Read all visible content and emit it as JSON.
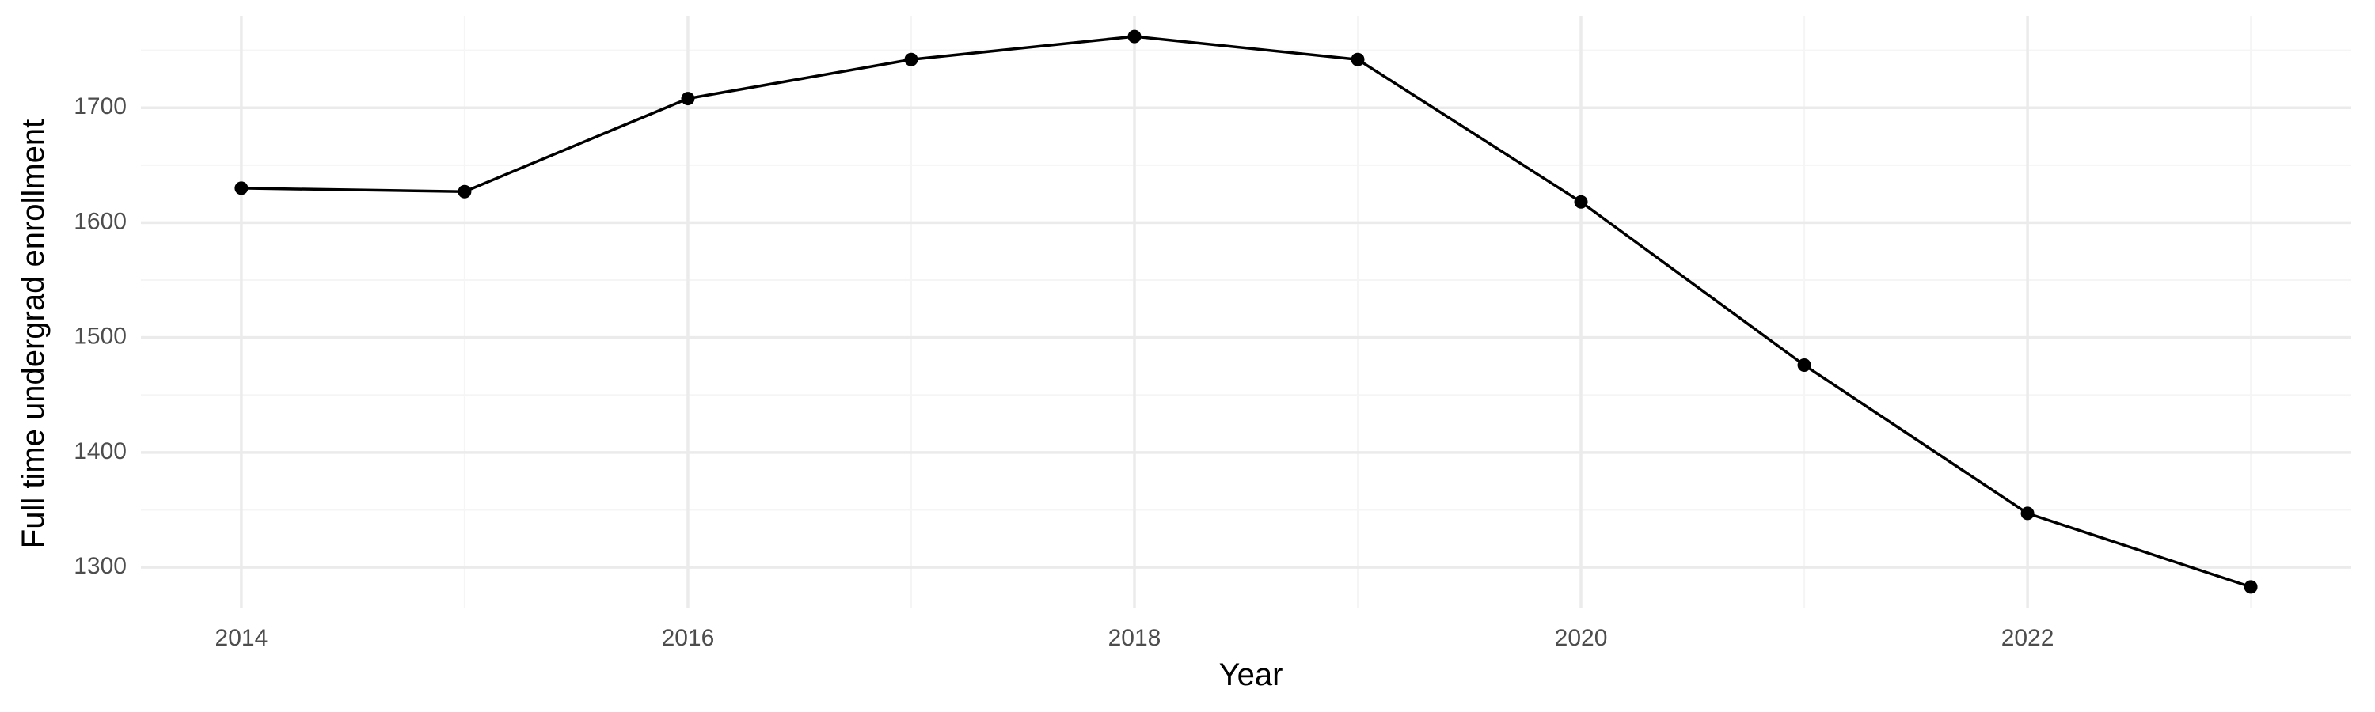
{
  "chart_data": {
    "type": "line",
    "title": "",
    "xlabel": "Year",
    "ylabel": "Full time undergrad enrollment",
    "x": [
      2014,
      2015,
      2016,
      2017,
      2018,
      2019,
      2020,
      2021,
      2022,
      2023
    ],
    "series": [
      {
        "values": [
          1630,
          1627,
          1708,
          1742,
          1762,
          1742,
          1618,
          1476,
          1347,
          1283
        ]
      }
    ],
    "xlim": [
      2013.55,
      2023.45
    ],
    "ylim": [
      1265,
      1780
    ],
    "x_ticks": [
      2014,
      2016,
      2018,
      2020,
      2022
    ],
    "x_tick_labels": [
      "2014",
      "2016",
      "2018",
      "2020",
      "2022"
    ],
    "x_minor_ticks": [
      2015,
      2017,
      2019,
      2021,
      2023
    ],
    "y_ticks": [
      1300,
      1400,
      1500,
      1600,
      1700
    ],
    "y_tick_labels": [
      "1300",
      "1400",
      "1500",
      "1600",
      "1700"
    ],
    "y_minor_ticks": [
      1350,
      1450,
      1550,
      1650,
      1750
    ],
    "grid": true,
    "legend": "none",
    "colors": {
      "line": "#000000",
      "point": "#000000",
      "grid_major": "#ebebeb",
      "grid_minor": "#f5f5f5",
      "tick_text": "#4d4d4d",
      "axis_title": "#000000",
      "background": "#ffffff"
    }
  }
}
